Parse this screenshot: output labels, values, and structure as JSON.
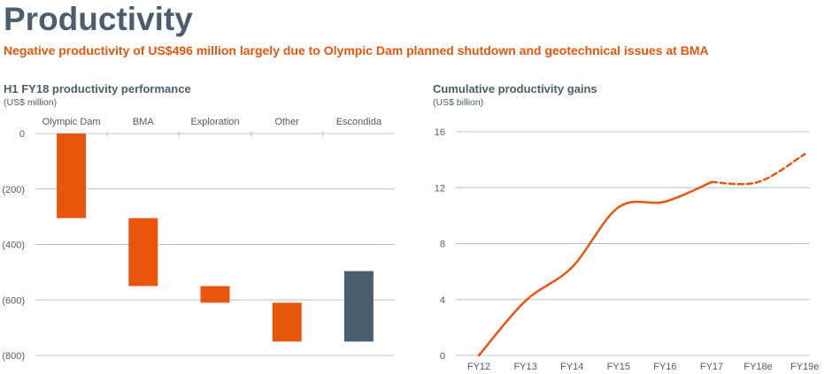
{
  "page": {
    "title": "Productivity",
    "subtitle": "Negative productivity of US$496 million largely due to Olympic Dam planned shutdown and geotechnical issues at BMA"
  },
  "colors": {
    "orange": "#e8560e",
    "slate": "#4a5e6e",
    "grid": "#b8c4cc"
  },
  "chart_data": [
    {
      "type": "bar",
      "subtype": "waterfall",
      "title": "H1 FY18 productivity performance",
      "unit": "(US$ million)",
      "categories": [
        "Olympic Dam",
        "BMA",
        "Exploration",
        "Other",
        "Escondida"
      ],
      "bars": [
        {
          "name": "Olympic Dam",
          "start": 0,
          "end": -305,
          "color": "#e8560e"
        },
        {
          "name": "BMA",
          "start": -305,
          "end": -550,
          "color": "#e8560e"
        },
        {
          "name": "Exploration",
          "start": -550,
          "end": -610,
          "color": "#e8560e"
        },
        {
          "name": "Other",
          "start": -610,
          "end": -750,
          "color": "#e8560e"
        },
        {
          "name": "Escondida",
          "start": -496,
          "end": -750,
          "color": "#4a5e6e"
        }
      ],
      "ylim": [
        -800,
        0
      ],
      "yticks": [
        0,
        -200,
        -400,
        -600,
        -800
      ],
      "ytick_labels": [
        "0",
        "(200)",
        "(400)",
        "(600)",
        "(800)"
      ],
      "grid": true
    },
    {
      "type": "line",
      "title": "Cumulative productivity gains",
      "unit": "(US$ billion)",
      "x": [
        "FY12",
        "FY13",
        "FY14",
        "FY15",
        "FY16",
        "FY17",
        "FY18e",
        "FY19e"
      ],
      "series": [
        {
          "style": "solid",
          "color": "#e8560e",
          "values": [
            0,
            3.9,
            6.3,
            10.6,
            11.0,
            12.4,
            null,
            null
          ]
        },
        {
          "style": "dashed",
          "color": "#e8560e",
          "values": [
            null,
            null,
            null,
            null,
            null,
            12.4,
            12.4,
            14.4
          ]
        }
      ],
      "ylim": [
        0,
        16
      ],
      "yticks": [
        0,
        4,
        8,
        12,
        16
      ],
      "grid": true
    }
  ]
}
